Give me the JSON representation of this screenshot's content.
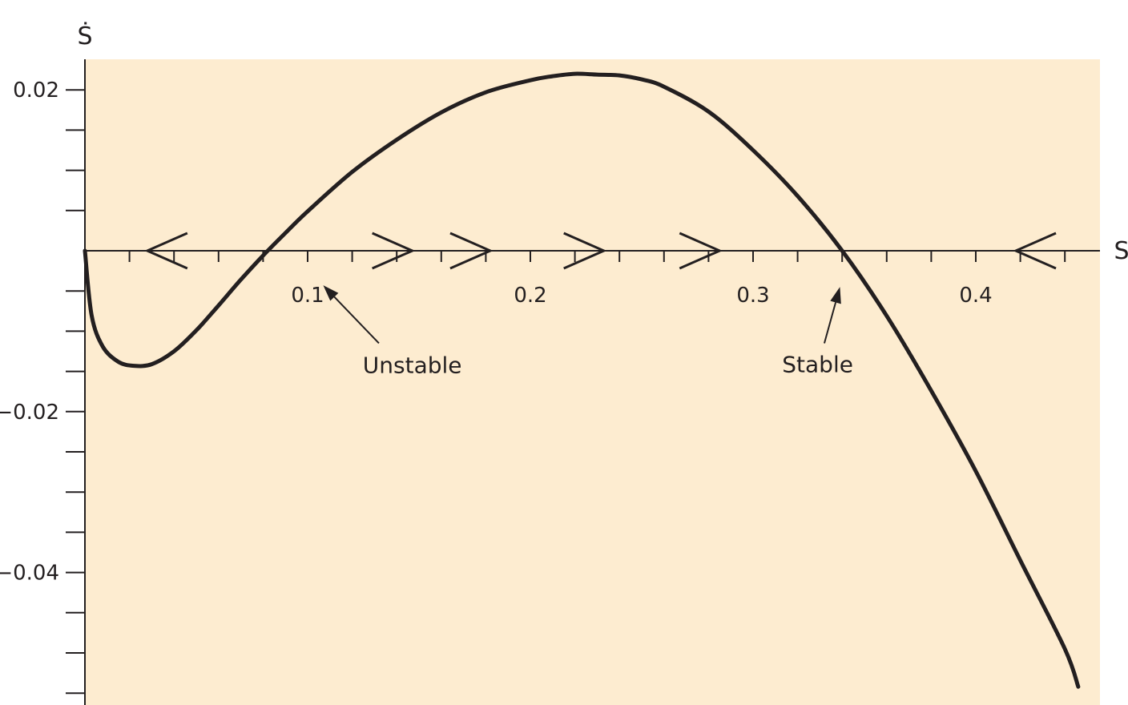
{
  "chart_data": {
    "type": "line",
    "title": "",
    "xlabel": "S",
    "ylabel": "Ṡ",
    "xlim": [
      0,
      0.456
    ],
    "ylim": [
      -0.056,
      0.0237
    ],
    "x_ticks": [
      {
        "value": 0.1,
        "label": "0.1"
      },
      {
        "value": 0.2,
        "label": "0.2"
      },
      {
        "value": 0.3,
        "label": "0.3"
      },
      {
        "value": 0.4,
        "label": "0.4"
      }
    ],
    "x_minor_step": 0.02,
    "y_ticks": [
      {
        "value": 0.02,
        "label": "0.02"
      },
      {
        "value": -0.02,
        "label": "−0.02"
      },
      {
        "value": -0.04,
        "label": "−0.04"
      }
    ],
    "y_minor_step": 0.005,
    "grid": false,
    "background_color": "#fdecd0",
    "line_color": "#231f20",
    "series": [
      {
        "x": [
          0.0,
          0.003,
          0.008,
          0.015,
          0.022,
          0.03,
          0.04,
          0.05,
          0.06,
          0.07,
          0.08,
          0.09,
          0.1,
          0.12,
          0.14,
          0.16,
          0.18,
          0.2,
          0.21,
          0.22,
          0.23,
          0.24,
          0.25,
          0.26,
          0.28,
          0.3,
          0.32,
          0.34,
          0.36,
          0.38,
          0.4,
          0.42,
          0.44,
          0.446
        ],
        "y": [
          0.0,
          -0.008,
          -0.0119,
          -0.0138,
          -0.0143,
          -0.0141,
          -0.0125,
          -0.0099,
          -0.0068,
          -0.0036,
          -0.0006,
          0.0022,
          0.0049,
          0.0098,
          0.0138,
          0.0172,
          0.0197,
          0.0212,
          0.0217,
          0.022,
          0.0219,
          0.0218,
          0.0213,
          0.0204,
          0.0173,
          0.0125,
          0.0068,
          0.0,
          -0.0081,
          -0.0174,
          -0.0274,
          -0.0385,
          -0.0495,
          -0.0542
        ]
      }
    ],
    "flow_arrows": [
      {
        "x": 0.028,
        "direction": "left"
      },
      {
        "x": 0.147,
        "direction": "right"
      },
      {
        "x": 0.182,
        "direction": "right"
      },
      {
        "x": 0.233,
        "direction": "right"
      },
      {
        "x": 0.285,
        "direction": "right"
      },
      {
        "x": 0.418,
        "direction": "left"
      }
    ],
    "annotations": [
      {
        "text": "Unstable",
        "text_x": 0.147,
        "text_y": -0.0142,
        "arrow_from": [
          0.132,
          -0.0115
        ],
        "arrow_to": [
          0.107,
          -0.0043
        ]
      },
      {
        "text": "Stable",
        "text_x": 0.329,
        "text_y": -0.0141,
        "arrow_from": [
          0.332,
          -0.0115
        ],
        "arrow_to": [
          0.339,
          -0.0045
        ]
      }
    ]
  }
}
